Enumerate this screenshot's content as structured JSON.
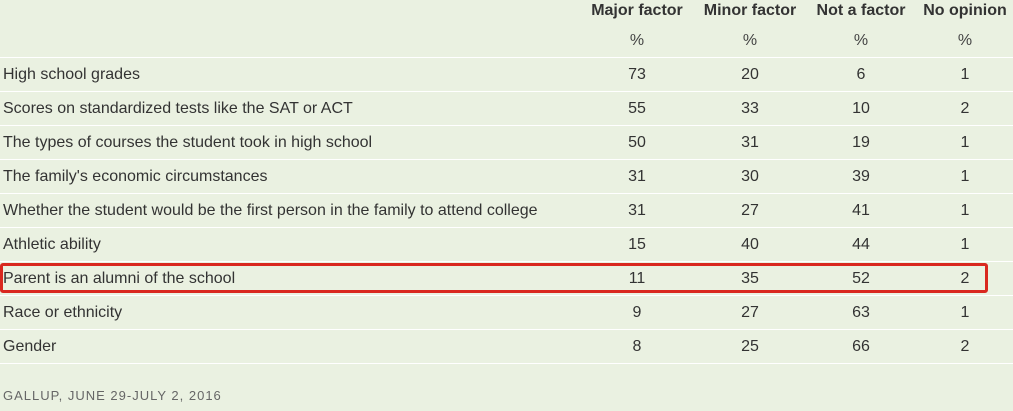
{
  "columns": [
    "Major factor",
    "Minor factor",
    "Not a factor",
    "No opinion"
  ],
  "units": [
    "%",
    "%",
    "%",
    "%"
  ],
  "rows": [
    {
      "label": "High school grades",
      "values": [
        "73",
        "20",
        "6",
        "1"
      ]
    },
    {
      "label": "Scores on standardized tests like the SAT or ACT",
      "values": [
        "55",
        "33",
        "10",
        "2"
      ]
    },
    {
      "label": "The types of courses the student took in high school",
      "values": [
        "50",
        "31",
        "19",
        "1"
      ]
    },
    {
      "label": "The family's economic circumstances",
      "values": [
        "31",
        "30",
        "39",
        "1"
      ]
    },
    {
      "label": "Whether the student would be the first person in the family to attend college",
      "values": [
        "31",
        "27",
        "41",
        "1"
      ]
    },
    {
      "label": "Athletic ability",
      "values": [
        "15",
        "40",
        "44",
        "1"
      ]
    },
    {
      "label": "Parent is an alumni of the school",
      "values": [
        "11",
        "35",
        "52",
        "2"
      ]
    },
    {
      "label": "Race or ethnicity",
      "values": [
        "9",
        "27",
        "63",
        "1"
      ]
    },
    {
      "label": "Gender",
      "values": [
        "8",
        "25",
        "66",
        "2"
      ]
    }
  ],
  "highlighted_row": "Parent is an alumni of the school",
  "highlight_color": "#d9281f",
  "source": "GALLUP, JUNE 29-JULY 2, 2016"
}
